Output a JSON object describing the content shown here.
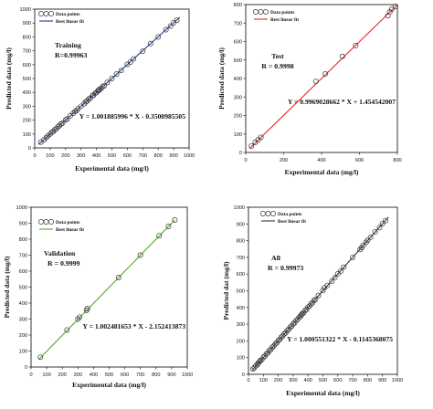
{
  "chart_data": [
    {
      "type": "scatter",
      "name_text": "Training",
      "r_text": "R=0.99963",
      "equation": "Y = 1.001885996 * X - 0.3500985505",
      "xlabel": "Experimental data (mg/l)",
      "ylabel": "Predicted data (mg/l)",
      "xlim": [
        0,
        1000
      ],
      "ylim": [
        0,
        1000
      ],
      "xticks": [
        0,
        100,
        200,
        300,
        400,
        500,
        600,
        700,
        800,
        900,
        1000
      ],
      "yticks": [
        0,
        100,
        200,
        300,
        400,
        500,
        600,
        700,
        800,
        900,
        1000
      ],
      "grid": false,
      "legend_position": "top-left",
      "legend": [
        "Data points",
        "Best linear fit"
      ],
      "line_color": "#1f3a93",
      "fit": {
        "slope": 1.001885996,
        "intercept": -0.3500985505,
        "x_range": [
          25,
          940
        ]
      },
      "x": [
        40,
        60,
        75,
        85,
        100,
        110,
        120,
        130,
        140,
        150,
        160,
        170,
        180,
        200,
        210,
        230,
        250,
        260,
        270,
        280,
        300,
        320,
        330,
        340,
        350,
        360,
        375,
        380,
        390,
        400,
        410,
        415,
        420,
        430,
        440,
        450,
        470,
        500,
        530,
        560,
        600,
        620,
        640,
        700,
        750,
        800,
        850,
        880,
        900,
        920
      ],
      "y": [
        42,
        58,
        74,
        87,
        100,
        112,
        118,
        132,
        138,
        152,
        160,
        172,
        178,
        202,
        208,
        232,
        250,
        262,
        268,
        282,
        300,
        318,
        332,
        338,
        352,
        358,
        377,
        380,
        392,
        400,
        412,
        414,
        422,
        428,
        442,
        448,
        472,
        500,
        532,
        558,
        602,
        618,
        642,
        698,
        752,
        800,
        852,
        878,
        902,
        920
      ]
    },
    {
      "type": "scatter",
      "name_text": "Test",
      "r_text": "R = 0.9998",
      "equation": "Y = 0.9969028662 * X + 1.454542007",
      "xlabel": "Experimental data (mg/l)",
      "ylabel": "Predicted data (mg/l)",
      "xlim": [
        0,
        800
      ],
      "ylim": [
        0,
        800
      ],
      "xticks": [
        0,
        200,
        400,
        600,
        800
      ],
      "yticks": [
        0,
        100,
        200,
        300,
        400,
        500,
        600,
        700,
        800
      ],
      "grid": false,
      "legend_position": "top-left",
      "legend": [
        "Data points",
        "Best linear fit"
      ],
      "line_color": "#e8261e",
      "fit": {
        "slope": 0.9969028662,
        "intercept": 1.454542007,
        "x_range": [
          20,
          800
        ]
      },
      "x": [
        30,
        50,
        65,
        80,
        370,
        420,
        510,
        580,
        750,
        760,
        770,
        790
      ],
      "y": [
        35,
        55,
        68,
        82,
        385,
        425,
        520,
        578,
        740,
        760,
        775,
        790
      ]
    },
    {
      "type": "scatter",
      "name_text": "Validation",
      "r_text": "R = 0.9999",
      "equation": "Y = 1.002481653 * X - 2.152413873",
      "xlabel": "Experimental data (mg/l)",
      "ylabel": "Predicted data (mg/l)",
      "xlim": [
        0,
        1000
      ],
      "ylim": [
        0,
        1000
      ],
      "xticks": [
        0,
        100,
        200,
        300,
        400,
        500,
        600,
        700,
        800,
        900,
        1000
      ],
      "yticks": [
        0,
        100,
        200,
        300,
        400,
        500,
        600,
        700,
        800,
        900,
        1000
      ],
      "grid": false,
      "legend_position": "top-right",
      "legend": [
        "Data points",
        "Best linear fit"
      ],
      "line_color": "#4caf28",
      "fit": {
        "slope": 1.002481653,
        "intercept": -2.152413873,
        "x_range": [
          50,
          920
        ]
      },
      "x": [
        60,
        230,
        300,
        310,
        355,
        360,
        560,
        700,
        820,
        880,
        920
      ],
      "y": [
        62,
        232,
        300,
        312,
        355,
        365,
        560,
        700,
        822,
        880,
        920
      ]
    },
    {
      "type": "scatter",
      "name_text": "All",
      "r_text": "R = 0.99973",
      "equation": "Y = 1.000551322 * X - 0.1145368075",
      "xlabel": "Experimental data (mg/l)",
      "ylabel": "Predicted dat (mg/l)",
      "xlim": [
        0,
        1000
      ],
      "ylim": [
        0,
        1000
      ],
      "xticks": [
        0,
        100,
        200,
        300,
        400,
        500,
        600,
        700,
        800,
        900,
        1000
      ],
      "yticks": [
        0,
        100,
        200,
        300,
        400,
        500,
        600,
        700,
        800,
        900,
        1000
      ],
      "grid": false,
      "legend_position": "top-right",
      "legend": [
        "Data points",
        "Best linear fit"
      ],
      "line_color": "#333333",
      "fit": {
        "slope": 1.000551322,
        "intercept": -0.1145368075,
        "x_range": [
          25,
          940
        ]
      },
      "x": [
        30,
        40,
        50,
        60,
        65,
        75,
        80,
        90,
        100,
        110,
        120,
        130,
        140,
        150,
        160,
        170,
        180,
        190,
        200,
        210,
        220,
        230,
        240,
        250,
        260,
        270,
        280,
        290,
        300,
        310,
        320,
        330,
        340,
        350,
        355,
        360,
        370,
        380,
        390,
        400,
        410,
        420,
        430,
        440,
        450,
        470,
        500,
        510,
        530,
        560,
        580,
        600,
        620,
        640,
        700,
        750,
        760,
        770,
        790,
        800,
        820,
        850,
        880,
        900,
        920
      ],
      "y": [
        32,
        40,
        52,
        58,
        67,
        76,
        82,
        88,
        102,
        108,
        122,
        128,
        142,
        148,
        162,
        168,
        182,
        188,
        202,
        208,
        222,
        230,
        242,
        248,
        262,
        268,
        282,
        288,
        302,
        308,
        322,
        328,
        342,
        348,
        357,
        362,
        368,
        382,
        388,
        402,
        408,
        422,
        428,
        442,
        448,
        472,
        502,
        518,
        532,
        558,
        578,
        602,
        618,
        642,
        700,
        748,
        758,
        772,
        790,
        802,
        820,
        852,
        878,
        902,
        920
      ]
    }
  ]
}
